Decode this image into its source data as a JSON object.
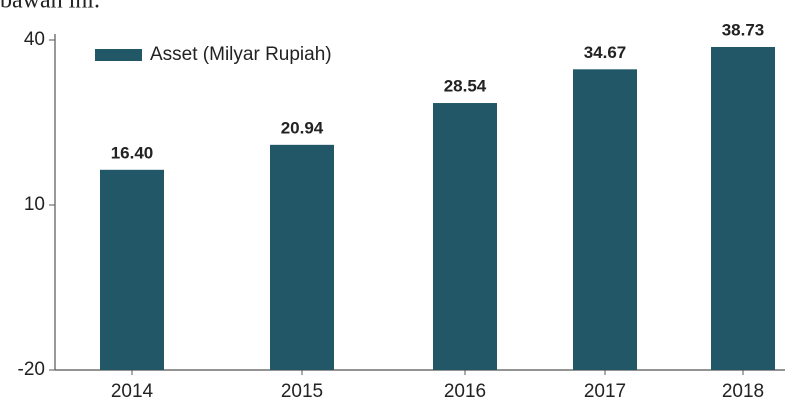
{
  "caption": "bawah ini.",
  "chart_data": {
    "type": "bar",
    "categories": [
      "2014",
      "2015",
      "2016",
      "2017",
      "2018"
    ],
    "series": [
      {
        "name": "Asset (Milyar Rupiah)",
        "color": "#215767",
        "values": [
          16.4,
          20.94,
          28.54,
          34.67,
          38.73
        ],
        "value_labels": [
          "16.40",
          "20.94",
          "28.54",
          "34.67",
          "38.73"
        ]
      }
    ],
    "ylim": [
      -20,
      40
    ],
    "yticks": [
      -20,
      10,
      40
    ],
    "grid": false,
    "legend": "top-left"
  }
}
